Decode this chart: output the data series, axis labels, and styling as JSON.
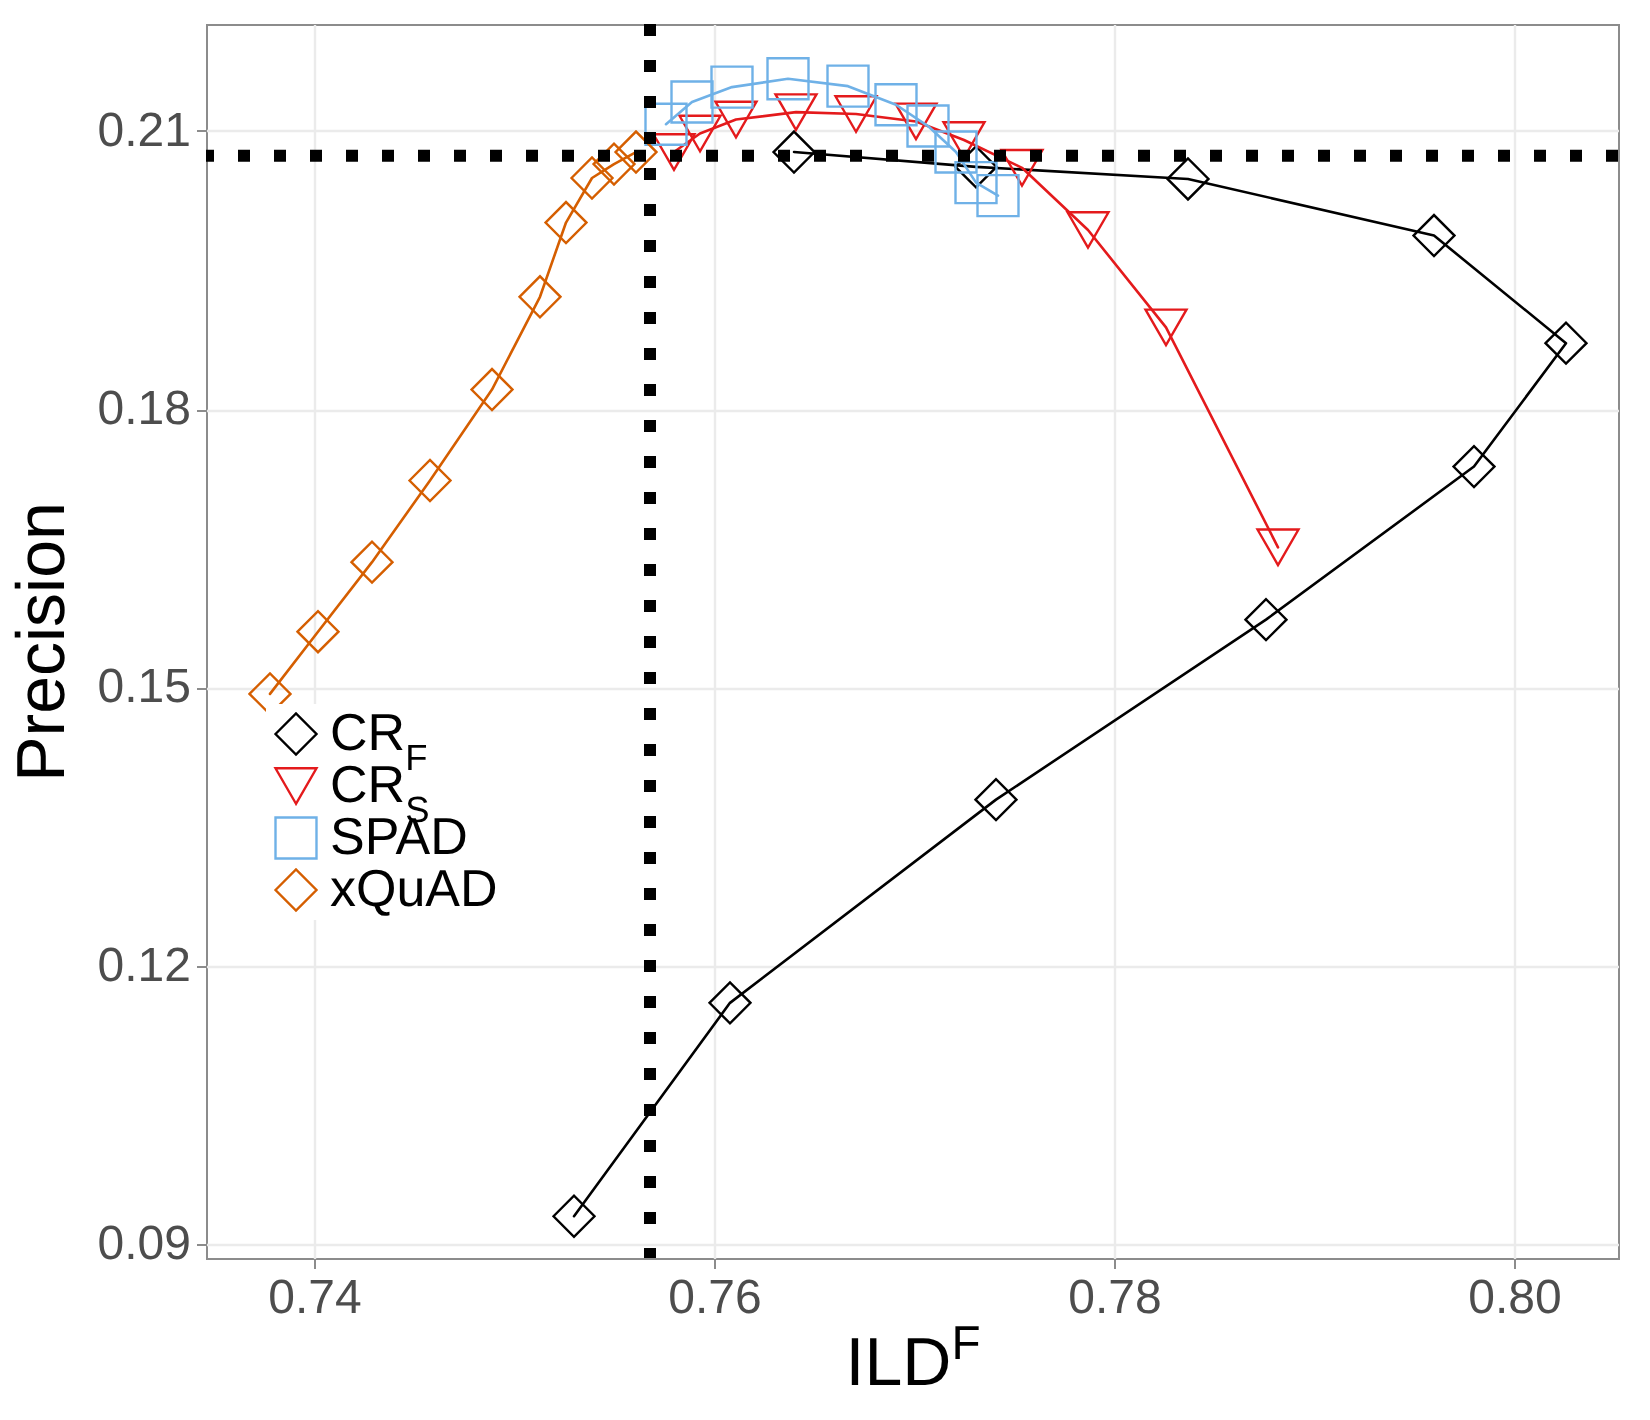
{
  "chart_data": {
    "type": "line",
    "xlabel": "ILD$^{F}$",
    "ylabel": "Precision",
    "xlim": [
      0.7346,
      0.8052
    ],
    "xticks": [
      0.74,
      0.76,
      0.78,
      {
        "value": 0.8,
        "label": "0.80"
      }
    ],
    "ylim": [
      0.0885,
      0.2215
    ],
    "yticks": [
      0.09,
      0.12,
      0.15,
      0.18,
      0.21
    ],
    "grid": true,
    "legend": "left",
    "series": [
      {
        "name": "CR$_{F}$",
        "color": "#000000",
        "marker": "diamond",
        "x": [
          0.753,
          0.7608,
          0.7741,
          0.7876,
          0.798,
          0.8026,
          0.796,
          0.7837,
          0.7731,
          0.764
        ],
        "values": [
          0.093,
          0.116,
          0.1379,
          0.1573,
          0.1738,
          0.1871,
          0.1987,
          0.2048,
          0.2061,
          0.2077
        ]
      },
      {
        "name": "CR$_{S}$",
        "color": "#e41a1c",
        "marker": "triangle",
        "x": [
          0.758,
          0.7593,
          0.7611,
          0.7641,
          0.7671,
          0.7701,
          0.7725,
          0.7754,
          0.7787,
          0.7826,
          0.7882
        ],
        "values": [
          0.2077,
          0.2097,
          0.2112,
          0.212,
          0.2118,
          0.211,
          0.209,
          0.206,
          0.1993,
          0.1888,
          0.1651
        ]
      },
      {
        "name": "SPAD",
        "color": "#6fb1e7",
        "marker": "square",
        "x": [
          0.7576,
          0.7589,
          0.7609,
          0.7637,
          0.7667,
          0.7691,
          0.7707,
          0.7721,
          0.7731,
          0.7742
        ],
        "values": [
          0.2107,
          0.2131,
          0.2147,
          0.2156,
          0.2148,
          0.2128,
          0.2105,
          0.2077,
          0.2044,
          0.203
        ]
      },
      {
        "name": "xQuAD",
        "color": "#d55e00",
        "marker": "diamond",
        "x": [
          0.7378,
          0.7402,
          0.7429,
          0.7458,
          0.7489,
          0.7513,
          0.7526,
          0.7539,
          0.755,
          0.7561
        ],
        "values": [
          0.1493,
          0.156,
          0.1635,
          0.1723,
          0.1821,
          0.1921,
          0.2001,
          0.2049,
          0.2064,
          0.2077
        ]
      }
    ],
    "ref_lines": [
      {
        "axis": "x",
        "value": 0.7568,
        "color": "#000000",
        "line_style": "dotted"
      },
      {
        "axis": "y",
        "value": 0.2073,
        "color": "#000000",
        "line_style": "dotted"
      }
    ]
  }
}
